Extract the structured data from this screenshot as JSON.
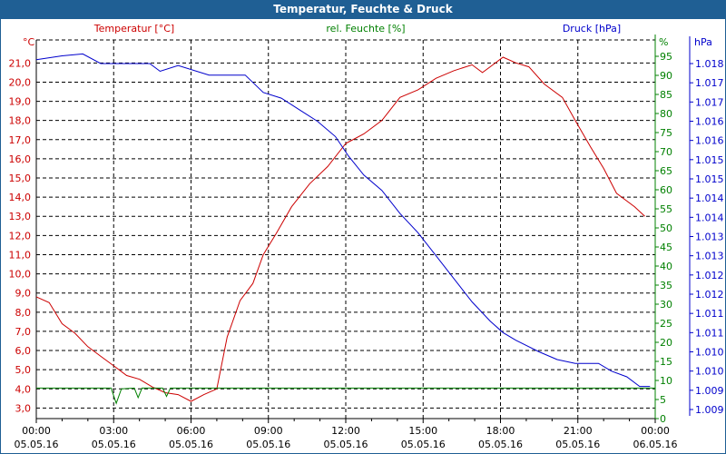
{
  "window_title": "Temperatur, Feuchte & Druck",
  "colors": {
    "temperature": "#cc0000",
    "humidity": "#008000",
    "pressure": "#0000cc",
    "title_bar": "#1f5f94"
  },
  "chart_data": {
    "type": "line",
    "title": "Temperatur, Feuchte & Druck",
    "legend": [
      "Temperatur [°C]",
      "rel. Feuchte [%]",
      "Druck [hPa]"
    ],
    "x_unit": "hours since 05.05.16 00:00",
    "xlim": [
      0,
      24
    ],
    "x_ticks": [
      {
        "time": "00:00",
        "date": "05.05.16"
      },
      {
        "time": "03:00",
        "date": "05.05.16"
      },
      {
        "time": "06:00",
        "date": "05.05.16"
      },
      {
        "time": "09:00",
        "date": "05.05.16"
      },
      {
        "time": "12:00",
        "date": "05.05.16"
      },
      {
        "time": "15:00",
        "date": "05.05.16"
      },
      {
        "time": "18:00",
        "date": "05.05.16"
      },
      {
        "time": "21:00",
        "date": "05.05.16"
      },
      {
        "time": "00:00",
        "date": "06.05.16"
      }
    ],
    "axes": {
      "temperature": {
        "unit": "°C",
        "ylim": [
          2.45,
          22.2
        ],
        "ticks": [
          "3,0",
          "4,0",
          "5,0",
          "6,0",
          "7,0",
          "8,0",
          "9,0",
          "10,0",
          "11,0",
          "12,0",
          "13,0",
          "14,0",
          "15,0",
          "16,0",
          "17,0",
          "18,0",
          "19,0",
          "20,0",
          "21,0"
        ]
      },
      "humidity": {
        "unit": "%",
        "ylim": [
          0,
          100
        ],
        "ticks": [
          "0",
          "5",
          "10",
          "15",
          "20",
          "25",
          "30",
          "35",
          "40",
          "45",
          "50",
          "55",
          "60",
          "65",
          "70",
          "75",
          "80",
          "85",
          "90",
          "95"
        ]
      },
      "pressure": {
        "unit": "hPa",
        "ylim": [
          1008.26,
          1018.2
        ],
        "ticks": [
          "1.009",
          "1.009",
          "1.010",
          "1.010",
          "1.011",
          "1.011",
          "1.012",
          "1.012",
          "1.013",
          "1.013",
          "1.014",
          "1.014",
          "1.015",
          "1.015",
          "1.016",
          "1.016",
          "1.017",
          "1.017",
          "1.018"
        ]
      }
    },
    "series": [
      {
        "name": "Temperatur [°C]",
        "axis": "temperature",
        "points": [
          [
            0,
            8.8
          ],
          [
            0.5,
            8.5
          ],
          [
            1,
            7.4
          ],
          [
            1.5,
            6.9
          ],
          [
            2,
            6.2
          ],
          [
            2.5,
            5.7
          ],
          [
            3,
            5.2
          ],
          [
            3.5,
            4.7
          ],
          [
            4,
            4.5
          ],
          [
            4.5,
            4.1
          ],
          [
            5,
            3.8
          ],
          [
            5.5,
            3.7
          ],
          [
            6,
            3.35
          ],
          [
            6.5,
            3.7
          ],
          [
            7,
            4.0
          ],
          [
            7.4,
            6.7
          ],
          [
            7.9,
            8.6
          ],
          [
            8.4,
            9.5
          ],
          [
            8.8,
            11
          ],
          [
            9.3,
            12.1
          ],
          [
            9.9,
            13.5
          ],
          [
            10.6,
            14.7
          ],
          [
            11.3,
            15.6
          ],
          [
            12,
            16.8
          ],
          [
            12.7,
            17.3
          ],
          [
            13.4,
            18
          ],
          [
            14.1,
            19.2
          ],
          [
            14.8,
            19.6
          ],
          [
            15.5,
            20.2
          ],
          [
            16.2,
            20.6
          ],
          [
            16.9,
            20.9
          ],
          [
            17.3,
            20.5
          ],
          [
            17.6,
            20.8
          ],
          [
            18.1,
            21.3
          ],
          [
            18.6,
            21.0
          ],
          [
            19.1,
            20.8
          ],
          [
            19.7,
            19.9
          ],
          [
            20.4,
            19.2
          ],
          [
            20.9,
            18
          ],
          [
            21.5,
            16.6
          ],
          [
            22,
            15.5
          ],
          [
            22.5,
            14.2
          ],
          [
            23.2,
            13.5
          ],
          [
            23.6,
            13.0
          ]
        ]
      },
      {
        "name": "rel. Feuchte [%]",
        "axis": "humidity",
        "points": [
          [
            0,
            8
          ],
          [
            2.9,
            8
          ],
          [
            3.1,
            4
          ],
          [
            3.3,
            7.8
          ],
          [
            3.8,
            8
          ],
          [
            3.95,
            5.5
          ],
          [
            4.1,
            8
          ],
          [
            4.9,
            8
          ],
          [
            5.05,
            5.8
          ],
          [
            5.2,
            8
          ],
          [
            24,
            8
          ]
        ]
      },
      {
        "name": "Druck [hPa]",
        "axis": "pressure",
        "points": [
          [
            0,
            1017.6
          ],
          [
            1,
            1017.7
          ],
          [
            1.8,
            1017.75
          ],
          [
            2.5,
            1017.5
          ],
          [
            4.4,
            1017.5
          ],
          [
            4.8,
            1017.3
          ],
          [
            5.5,
            1017.45
          ],
          [
            6.7,
            1017.2
          ],
          [
            8.1,
            1017.2
          ],
          [
            8.8,
            1016.75
          ],
          [
            9.5,
            1016.6
          ],
          [
            10.2,
            1016.3
          ],
          [
            10.9,
            1016.0
          ],
          [
            11.6,
            1015.6
          ],
          [
            12.1,
            1015.1
          ],
          [
            12.7,
            1014.6
          ],
          [
            13.4,
            1014.2
          ],
          [
            14.1,
            1013.6
          ],
          [
            14.8,
            1013.1
          ],
          [
            15.5,
            1012.5
          ],
          [
            16.2,
            1011.9
          ],
          [
            16.9,
            1011.3
          ],
          [
            17.6,
            1010.8
          ],
          [
            18.1,
            1010.5
          ],
          [
            18.6,
            1010.3
          ],
          [
            19.5,
            1010.0
          ],
          [
            20.2,
            1009.8
          ],
          [
            20.9,
            1009.7
          ],
          [
            21.8,
            1009.7
          ],
          [
            22.3,
            1009.5
          ],
          [
            22.9,
            1009.35
          ],
          [
            23.4,
            1009.1
          ],
          [
            23.8,
            1009.1
          ]
        ]
      }
    ]
  }
}
